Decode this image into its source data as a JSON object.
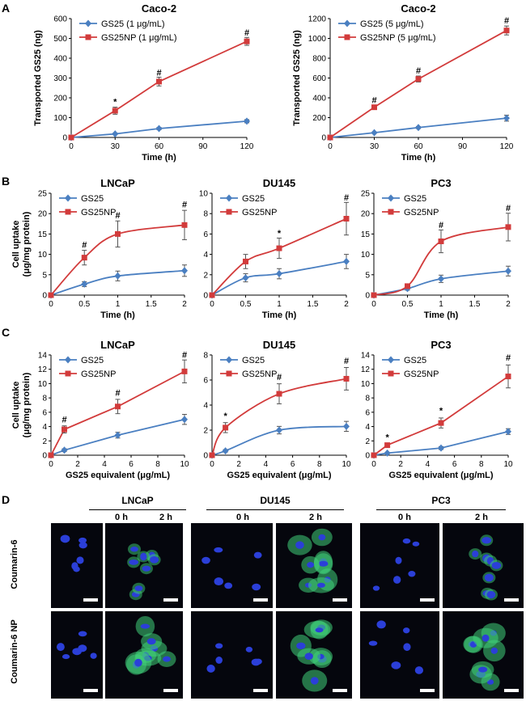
{
  "panels": {
    "A": "A",
    "B": "B",
    "C": "C",
    "D": "D"
  },
  "colors": {
    "GS25": "#4a7fc1",
    "GS25NP": "#d23b3b"
  },
  "chart_data": [
    {
      "id": "A1",
      "type": "line",
      "title": "Caco-2",
      "xlabel": "Time (h)",
      "ylabel": "Transported GS25 (ng)",
      "xlim": [
        0,
        120
      ],
      "ylim": [
        0,
        600
      ],
      "xticks": [
        0,
        30,
        60,
        90,
        120
      ],
      "yticks": [
        0,
        100,
        200,
        300,
        400,
        500,
        600
      ],
      "legend": "top-left",
      "series": [
        {
          "name": "GS25 (1 μg/mL)",
          "color": "#4a7fc1",
          "marker": "diamond",
          "x": [
            0,
            30,
            60,
            120
          ],
          "y": [
            0,
            18,
            45,
            82
          ],
          "err": [
            0,
            4,
            6,
            8
          ],
          "smooth": false
        },
        {
          "name": "GS25NP (1 μg/mL)",
          "color": "#d23b3b",
          "marker": "square",
          "x": [
            0,
            30,
            60,
            120
          ],
          "y": [
            0,
            135,
            282,
            485
          ],
          "err": [
            0,
            18,
            22,
            20
          ],
          "smooth": false
        }
      ],
      "annotations": [
        {
          "x": 30,
          "y": 165,
          "text": "*"
        },
        {
          "x": 60,
          "y": 313,
          "text": "#"
        },
        {
          "x": 120,
          "y": 515,
          "text": "#"
        }
      ]
    },
    {
      "id": "A2",
      "type": "line",
      "title": "Caco-2",
      "xlabel": "Time (h)",
      "ylabel": "Transported GS25 (ng)",
      "xlim": [
        0,
        120
      ],
      "ylim": [
        0,
        1200
      ],
      "xticks": [
        0,
        30,
        60,
        90,
        120
      ],
      "yticks": [
        0,
        200,
        400,
        600,
        800,
        1000,
        1200
      ],
      "legend": "top-left",
      "series": [
        {
          "name": "GS25 (5 μg/mL)",
          "color": "#4a7fc1",
          "marker": "diamond",
          "x": [
            0,
            30,
            60,
            120
          ],
          "y": [
            0,
            48,
            100,
            195
          ],
          "err": [
            0,
            8,
            10,
            30
          ],
          "smooth": false
        },
        {
          "name": "GS25NP (5 μg/mL)",
          "color": "#d23b3b",
          "marker": "square",
          "x": [
            0,
            30,
            60,
            120
          ],
          "y": [
            0,
            305,
            590,
            1080
          ],
          "err": [
            0,
            15,
            30,
            45
          ],
          "smooth": false
        }
      ],
      "annotations": [
        {
          "x": 30,
          "y": 345,
          "text": "#"
        },
        {
          "x": 60,
          "y": 645,
          "text": "#"
        },
        {
          "x": 120,
          "y": 1150,
          "text": "#"
        }
      ]
    },
    {
      "id": "B1",
      "type": "line",
      "title": "LNCaP",
      "xlabel": "Time (h)",
      "ylabel": "Cell uptake (μg/mg protein)",
      "xlim": [
        0,
        2
      ],
      "ylim": [
        0,
        25
      ],
      "xticks": [
        0,
        0.5,
        1,
        1.5,
        2
      ],
      "yticks": [
        0,
        5,
        10,
        15,
        20,
        25
      ],
      "legend": "top-left",
      "series": [
        {
          "name": "GS25",
          "color": "#4a7fc1",
          "marker": "diamond",
          "x": [
            0,
            0.5,
            1,
            2
          ],
          "y": [
            0,
            2.7,
            4.7,
            6.0
          ],
          "err": [
            0,
            0.6,
            1.2,
            1.4
          ],
          "smooth": true
        },
        {
          "name": "GS25NP",
          "color": "#d23b3b",
          "marker": "square",
          "x": [
            0,
            0.5,
            1,
            2
          ],
          "y": [
            0,
            9.2,
            15.0,
            17.2
          ],
          "err": [
            0,
            1.8,
            3.2,
            3.6
          ],
          "smooth": true
        }
      ],
      "annotations": [
        {
          "x": 0.5,
          "y": 11.6,
          "text": "#"
        },
        {
          "x": 1,
          "y": 18.8,
          "text": "#"
        },
        {
          "x": 2,
          "y": 21.5,
          "text": "#"
        }
      ]
    },
    {
      "id": "B2",
      "type": "line",
      "title": "DU145",
      "xlabel": "Time (h)",
      "ylabel": "",
      "xlim": [
        0,
        2
      ],
      "ylim": [
        0,
        10
      ],
      "xticks": [
        0,
        0.5,
        1,
        1.5,
        2
      ],
      "yticks": [
        0,
        2,
        4,
        6,
        8,
        10
      ],
      "legend": "top-left",
      "series": [
        {
          "name": "GS25",
          "color": "#4a7fc1",
          "marker": "diamond",
          "x": [
            0,
            0.5,
            1,
            2
          ],
          "y": [
            0,
            1.7,
            2.1,
            3.3
          ],
          "err": [
            0,
            0.4,
            0.5,
            0.7
          ],
          "smooth": true
        },
        {
          "name": "GS25NP",
          "color": "#d23b3b",
          "marker": "square",
          "x": [
            0,
            0.5,
            1,
            2
          ],
          "y": [
            0,
            3.3,
            4.6,
            7.5
          ],
          "err": [
            0,
            0.7,
            1.0,
            1.6
          ],
          "smooth": true
        }
      ],
      "annotations": [
        {
          "x": 1,
          "y": 5.8,
          "text": "*"
        },
        {
          "x": 2,
          "y": 9.3,
          "text": "#"
        }
      ]
    },
    {
      "id": "B3",
      "type": "line",
      "title": "PC3",
      "xlabel": "Time (h)",
      "ylabel": "",
      "xlim": [
        0,
        2
      ],
      "ylim": [
        0,
        25
      ],
      "xticks": [
        0,
        0.5,
        1,
        1.5,
        2
      ],
      "yticks": [
        0,
        5,
        10,
        15,
        20,
        25
      ],
      "legend": "top-left",
      "series": [
        {
          "name": "GS25",
          "color": "#4a7fc1",
          "marker": "diamond",
          "x": [
            0,
            0.5,
            1,
            2
          ],
          "y": [
            0,
            1.6,
            4.0,
            5.9
          ],
          "err": [
            0,
            0.4,
            0.9,
            1.2
          ],
          "smooth": true
        },
        {
          "name": "GS25NP",
          "color": "#d23b3b",
          "marker": "square",
          "x": [
            0,
            0.5,
            1,
            2
          ],
          "y": [
            0,
            2.2,
            13.2,
            16.7
          ],
          "err": [
            0,
            0.5,
            2.8,
            3.4
          ],
          "smooth": true
        }
      ],
      "annotations": [
        {
          "x": 1,
          "y": 16.5,
          "text": "#"
        },
        {
          "x": 2,
          "y": 20.6,
          "text": "#"
        }
      ]
    },
    {
      "id": "C1",
      "type": "line",
      "title": "LNCaP",
      "xlabel": "GS25 equivalent (μg/mL)",
      "ylabel": "Cell uptake (μg/mg protein)",
      "xlim": [
        0,
        10
      ],
      "ylim": [
        0,
        14
      ],
      "xticks": [
        0,
        2,
        4,
        6,
        8,
        10
      ],
      "yticks": [
        0,
        2,
        4,
        6,
        8,
        10,
        12,
        14
      ],
      "legend": "top-left",
      "series": [
        {
          "name": "GS25",
          "color": "#4a7fc1",
          "marker": "diamond",
          "x": [
            0,
            1,
            5,
            10
          ],
          "y": [
            0,
            0.7,
            2.8,
            5.0
          ],
          "err": [
            0,
            0.2,
            0.4,
            0.7
          ],
          "smooth": false
        },
        {
          "name": "GS25NP",
          "color": "#d23b3b",
          "marker": "square",
          "x": [
            0,
            1,
            5,
            10
          ],
          "y": [
            0,
            3.6,
            6.8,
            11.7
          ],
          "err": [
            0,
            0.5,
            1.0,
            1.6
          ],
          "smooth": false
        }
      ],
      "annotations": [
        {
          "x": 1,
          "y": 4.6,
          "text": "#"
        },
        {
          "x": 5,
          "y": 8.3,
          "text": "#"
        },
        {
          "x": 10,
          "y": 13.6,
          "text": "#"
        }
      ]
    },
    {
      "id": "C2",
      "type": "line",
      "title": "DU145",
      "xlabel": "GS25 equivalent (μg/mL)",
      "ylabel": "",
      "xlim": [
        0,
        10
      ],
      "ylim": [
        0,
        8
      ],
      "xticks": [
        0,
        2,
        4,
        6,
        8,
        10
      ],
      "yticks": [
        0,
        2,
        4,
        6,
        8
      ],
      "legend": "top-left",
      "series": [
        {
          "name": "GS25",
          "color": "#4a7fc1",
          "marker": "diamond",
          "x": [
            0,
            1,
            5,
            10
          ],
          "y": [
            0,
            0.35,
            2.0,
            2.3
          ],
          "err": [
            0,
            0.1,
            0.3,
            0.4
          ],
          "smooth": true
        },
        {
          "name": "GS25NP",
          "color": "#d23b3b",
          "marker": "square",
          "x": [
            0,
            1,
            5,
            10
          ],
          "y": [
            0,
            2.2,
            4.9,
            6.1
          ],
          "err": [
            0,
            0.4,
            0.8,
            0.9
          ],
          "smooth": true
        }
      ],
      "annotations": [
        {
          "x": 1,
          "y": 2.9,
          "text": "*"
        },
        {
          "x": 5,
          "y": 6.0,
          "text": "#"
        },
        {
          "x": 10,
          "y": 7.3,
          "text": "#"
        }
      ]
    },
    {
      "id": "C3",
      "type": "line",
      "title": "PC3",
      "xlabel": "GS25 equivalent (μg/mL)",
      "ylabel": "",
      "xlim": [
        0,
        10
      ],
      "ylim": [
        0,
        14
      ],
      "xticks": [
        0,
        2,
        4,
        6,
        8,
        10
      ],
      "yticks": [
        0,
        2,
        4,
        6,
        8,
        10,
        12,
        14
      ],
      "legend": "top-left",
      "series": [
        {
          "name": "GS25",
          "color": "#4a7fc1",
          "marker": "diamond",
          "x": [
            0,
            1,
            5,
            10
          ],
          "y": [
            0,
            0.3,
            1.0,
            3.3
          ],
          "err": [
            0,
            0.1,
            0.2,
            0.4
          ],
          "smooth": false
        },
        {
          "name": "GS25NP",
          "color": "#d23b3b",
          "marker": "square",
          "x": [
            0,
            1,
            5,
            10
          ],
          "y": [
            0,
            1.4,
            4.5,
            11.0
          ],
          "err": [
            0,
            0.2,
            0.7,
            1.6
          ],
          "smooth": false
        }
      ],
      "annotations": [
        {
          "x": 1,
          "y": 2.1,
          "text": "*"
        },
        {
          "x": 5,
          "y": 5.8,
          "text": "*"
        },
        {
          "x": 10,
          "y": 13.2,
          "text": "#"
        }
      ]
    }
  ],
  "microscopy": {
    "groups": [
      "LNCaP",
      "DU145",
      "PC3"
    ],
    "time_labels": [
      "0 h",
      "2 h",
      "0 h",
      "2 h",
      "0 h",
      "2 h"
    ],
    "row_labels": [
      "Coumarin-6",
      "Coumarin-6 NP"
    ],
    "nucleus_color": "#2b3fd8",
    "stain_color": "#3fd07a"
  }
}
